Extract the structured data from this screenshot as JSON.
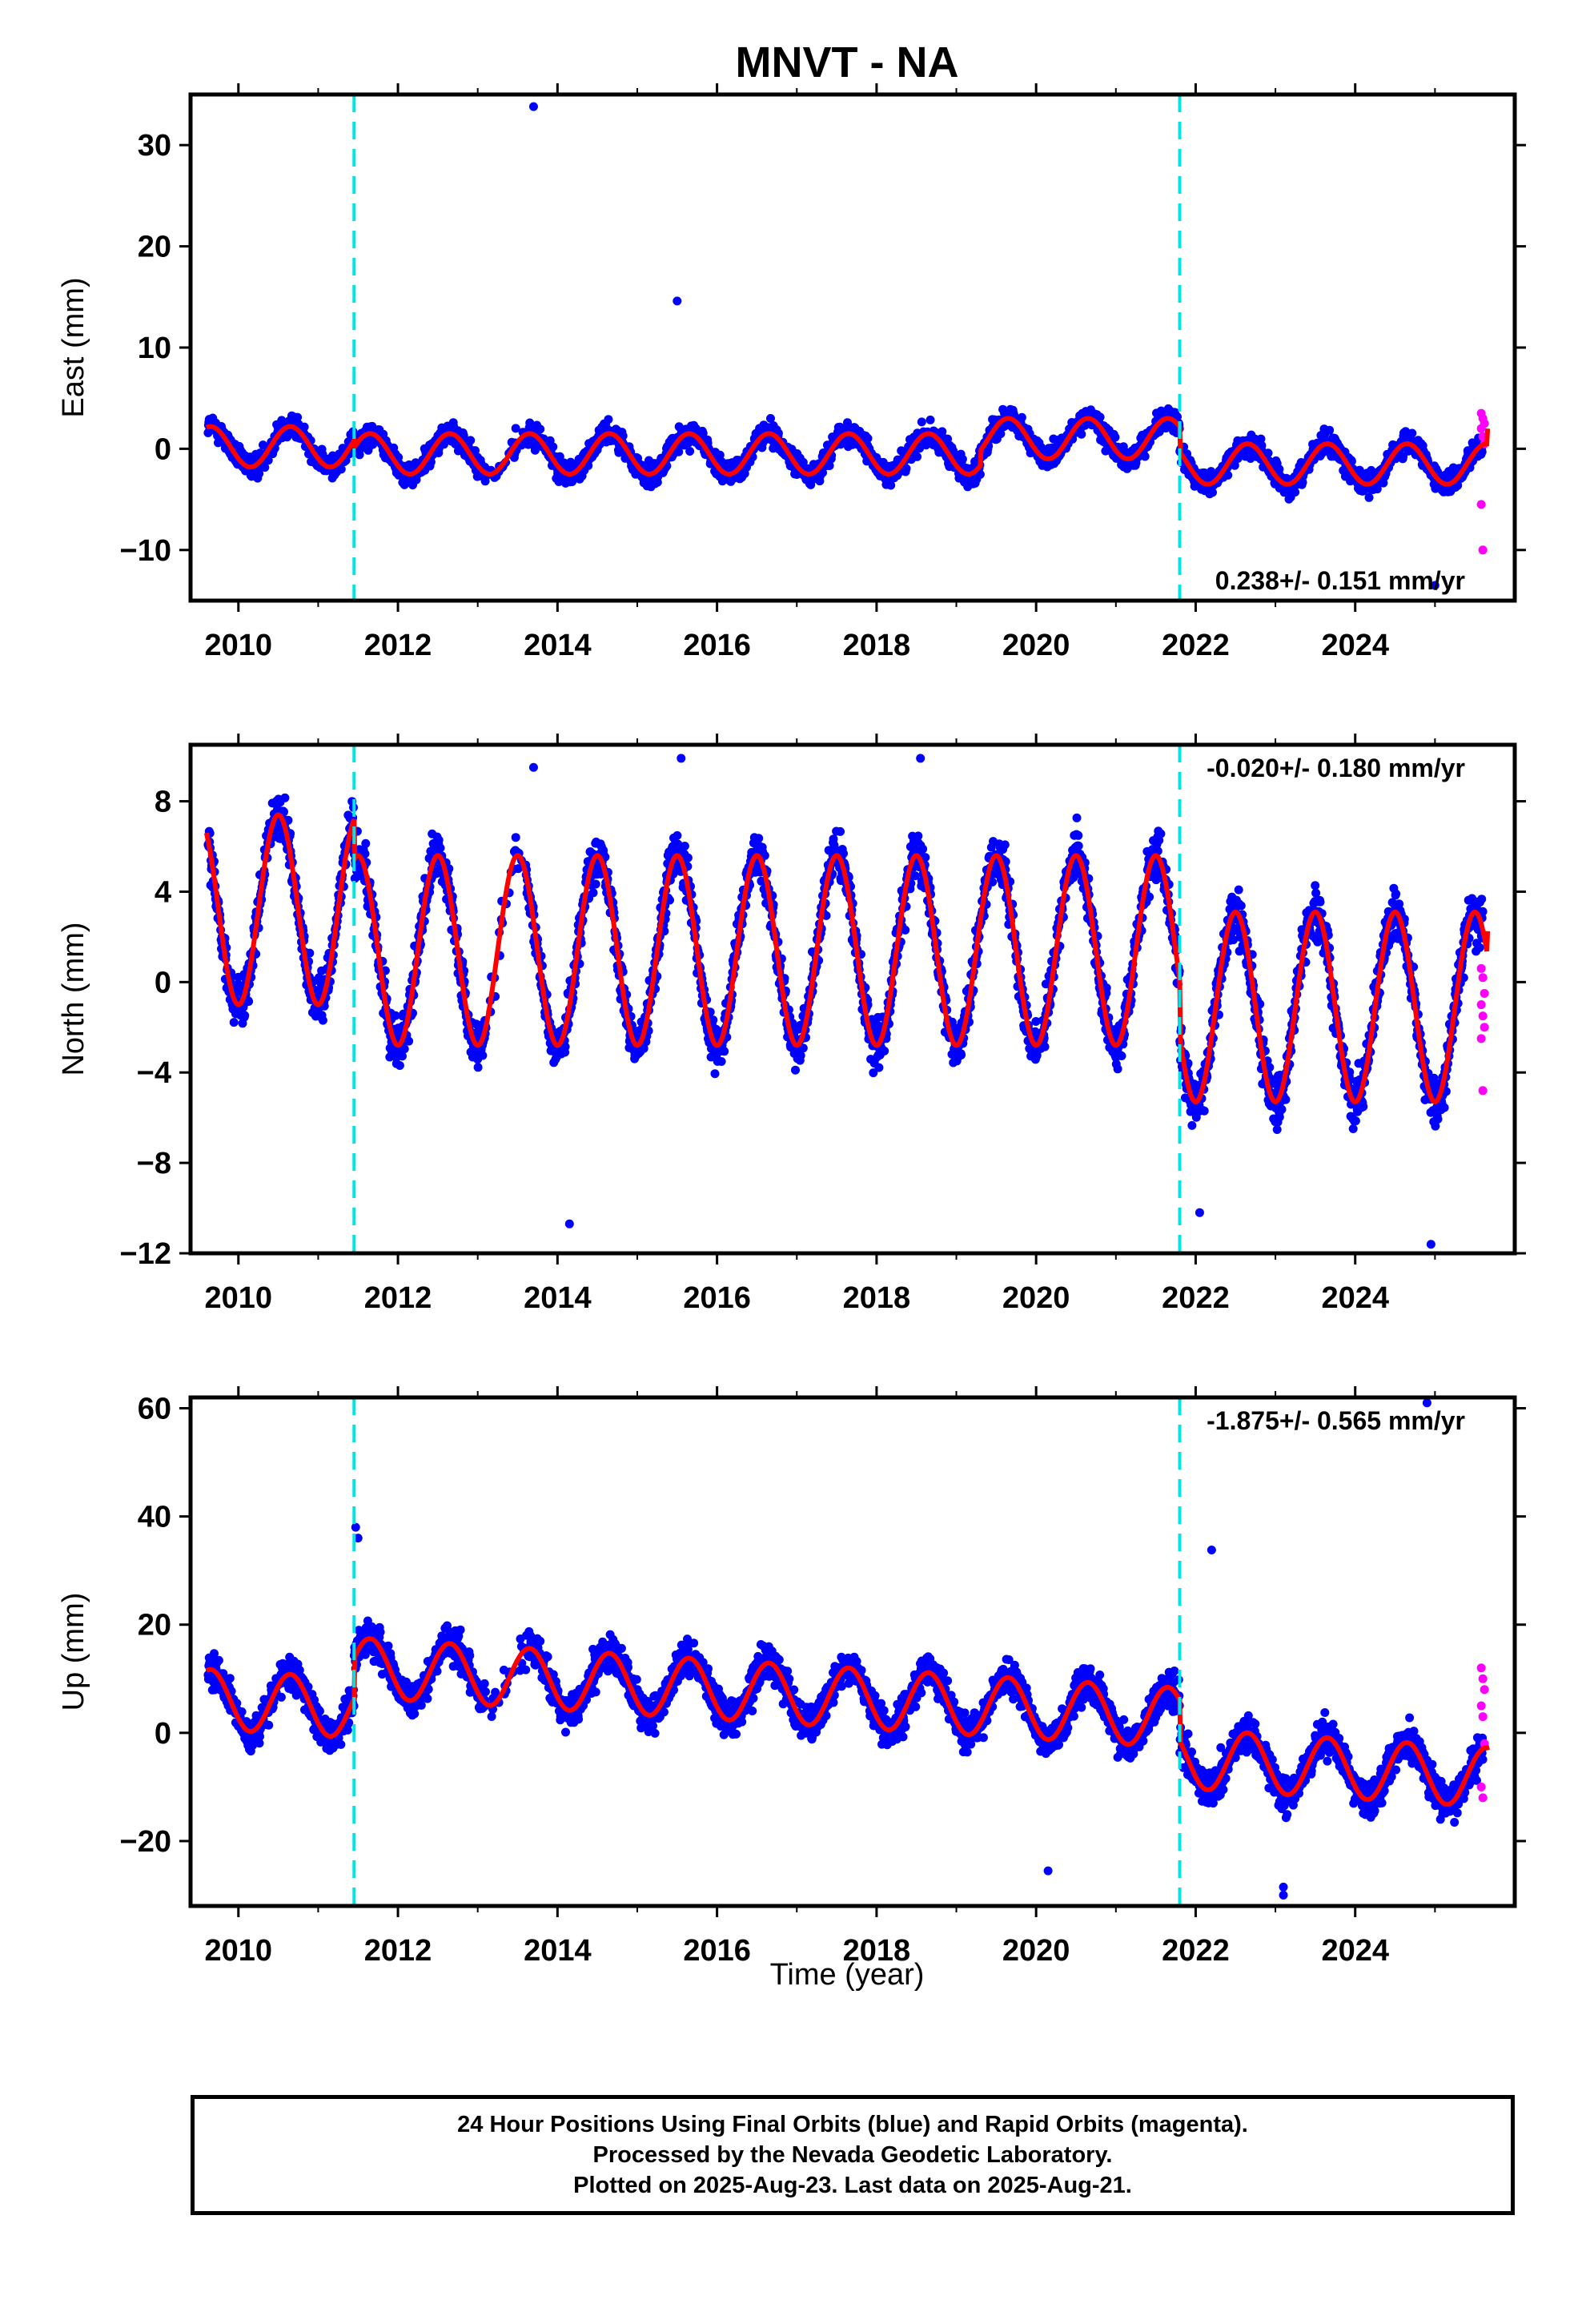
{
  "title": "MNVT - NA",
  "colors": {
    "final_orbits": "#0000ff",
    "rapid_orbits": "#ff00ff",
    "model_fit": "#ff0000",
    "event_lines": "#00e5e5",
    "frame": "#000000"
  },
  "x_axis": {
    "label": "Time (year)",
    "range": [
      2009.4,
      2026.0
    ],
    "ticks": [
      "2010",
      "2012",
      "2014",
      "2016",
      "2018",
      "2020",
      "2022",
      "2024"
    ]
  },
  "events": [
    2011.45,
    2021.8
  ],
  "chart_data": [
    {
      "type": "scatter",
      "component": "east",
      "ylabel": "East (mm)",
      "ylim": [
        -15,
        35
      ],
      "yticks": [
        "30",
        "20",
        "10",
        "0",
        "−10"
      ],
      "rate_text": "0.238+/- 0.151 mm/yr",
      "model": {
        "amplitude": 2.0,
        "peak_phase": 0.65,
        "offsets": [
          {
            "range": [
              2009.6,
              2011.45
            ],
            "level": 0.2
          },
          {
            "range": [
              2011.45,
              2019.3
            ],
            "level": -0.5
          },
          {
            "range": [
              2019.3,
              2021.8
            ],
            "level": 1.0
          },
          {
            "range": [
              2021.8,
              2025.65
            ],
            "level": -1.5
          }
        ]
      },
      "scatter_sd": 1.4,
      "outliers": [
        {
          "x": 2013.7,
          "y": 33.8
        },
        {
          "x": 2015.5,
          "y": 14.6
        },
        {
          "x": 2025.0,
          "y": -13.5
        }
      ],
      "rapid_values": [
        3.5,
        3.0,
        2.5,
        2.0,
        1.2,
        0.5,
        -5.5,
        -10.0
      ]
    },
    {
      "type": "scatter",
      "component": "north",
      "ylabel": "North (mm)",
      "ylim": [
        -12,
        10.5
      ],
      "yticks": [
        "8",
        "4",
        "0",
        "−4",
        "−8",
        "−12"
      ],
      "rate_text": "-0.020+/- 0.180 mm/yr",
      "model": {
        "amplitude": 4.2,
        "peak_phase": 0.5,
        "offsets": [
          {
            "range": [
              2009.6,
              2011.45
            ],
            "level": 3.2
          },
          {
            "range": [
              2011.45,
              2021.8
            ],
            "level": 1.4
          },
          {
            "range": [
              2021.8,
              2025.65
            ],
            "level": -1.1
          }
        ]
      },
      "scatter_sd": 1.3,
      "outliers": [
        {
          "x": 2014.15,
          "y": -10.7
        },
        {
          "x": 2013.7,
          "y": 9.5
        },
        {
          "x": 2015.55,
          "y": 9.9
        },
        {
          "x": 2022.05,
          "y": -10.2
        },
        {
          "x": 2024.95,
          "y": -11.6
        },
        {
          "x": 2018.55,
          "y": 9.9
        }
      ],
      "rapid_values": [
        0.6,
        0.2,
        -0.5,
        -1.0,
        -1.5,
        -2.0,
        -2.5,
        -4.8
      ]
    },
    {
      "type": "scatter",
      "component": "up",
      "ylabel": "Up (mm)",
      "ylim": [
        -32,
        62
      ],
      "yticks": [
        "60",
        "40",
        "20",
        "0",
        "−20"
      ],
      "rate_text": "-1.875+/- 0.565 mm/yr",
      "model": {
        "amplitude": 5.5,
        "peak_phase": 0.65,
        "offsets": [
          {
            "range": [
              2009.6,
              2011.45
            ],
            "level": 0.5
          },
          {
            "range": [
              2011.45,
              2021.8
            ],
            "level": 8.0
          },
          {
            "range": [
              2021.8,
              2025.65
            ],
            "level": 0.5
          }
        ]
      },
      "trend": -0.9,
      "scatter_sd": 4.0,
      "outliers": [
        {
          "x": 2011.47,
          "y": 38.0
        },
        {
          "x": 2011.5,
          "y": 36.0
        },
        {
          "x": 2022.2,
          "y": 33.8
        },
        {
          "x": 2024.9,
          "y": 61.0
        },
        {
          "x": 2023.1,
          "y": -30.0
        },
        {
          "x": 2023.1,
          "y": -28.5
        },
        {
          "x": 2020.15,
          "y": -25.5
        }
      ],
      "rapid_values": [
        12.0,
        10.0,
        8.0,
        5.0,
        3.0,
        -2.0,
        -10.0,
        -12.0
      ]
    }
  ],
  "footer": {
    "line1": "24 Hour Positions Using Final Orbits (blue) and Rapid Orbits (magenta).",
    "line2": "Processed by the Nevada Geodetic Laboratory.",
    "line3": "Plotted on 2025-Aug-23. Last data on 2025-Aug-21."
  }
}
